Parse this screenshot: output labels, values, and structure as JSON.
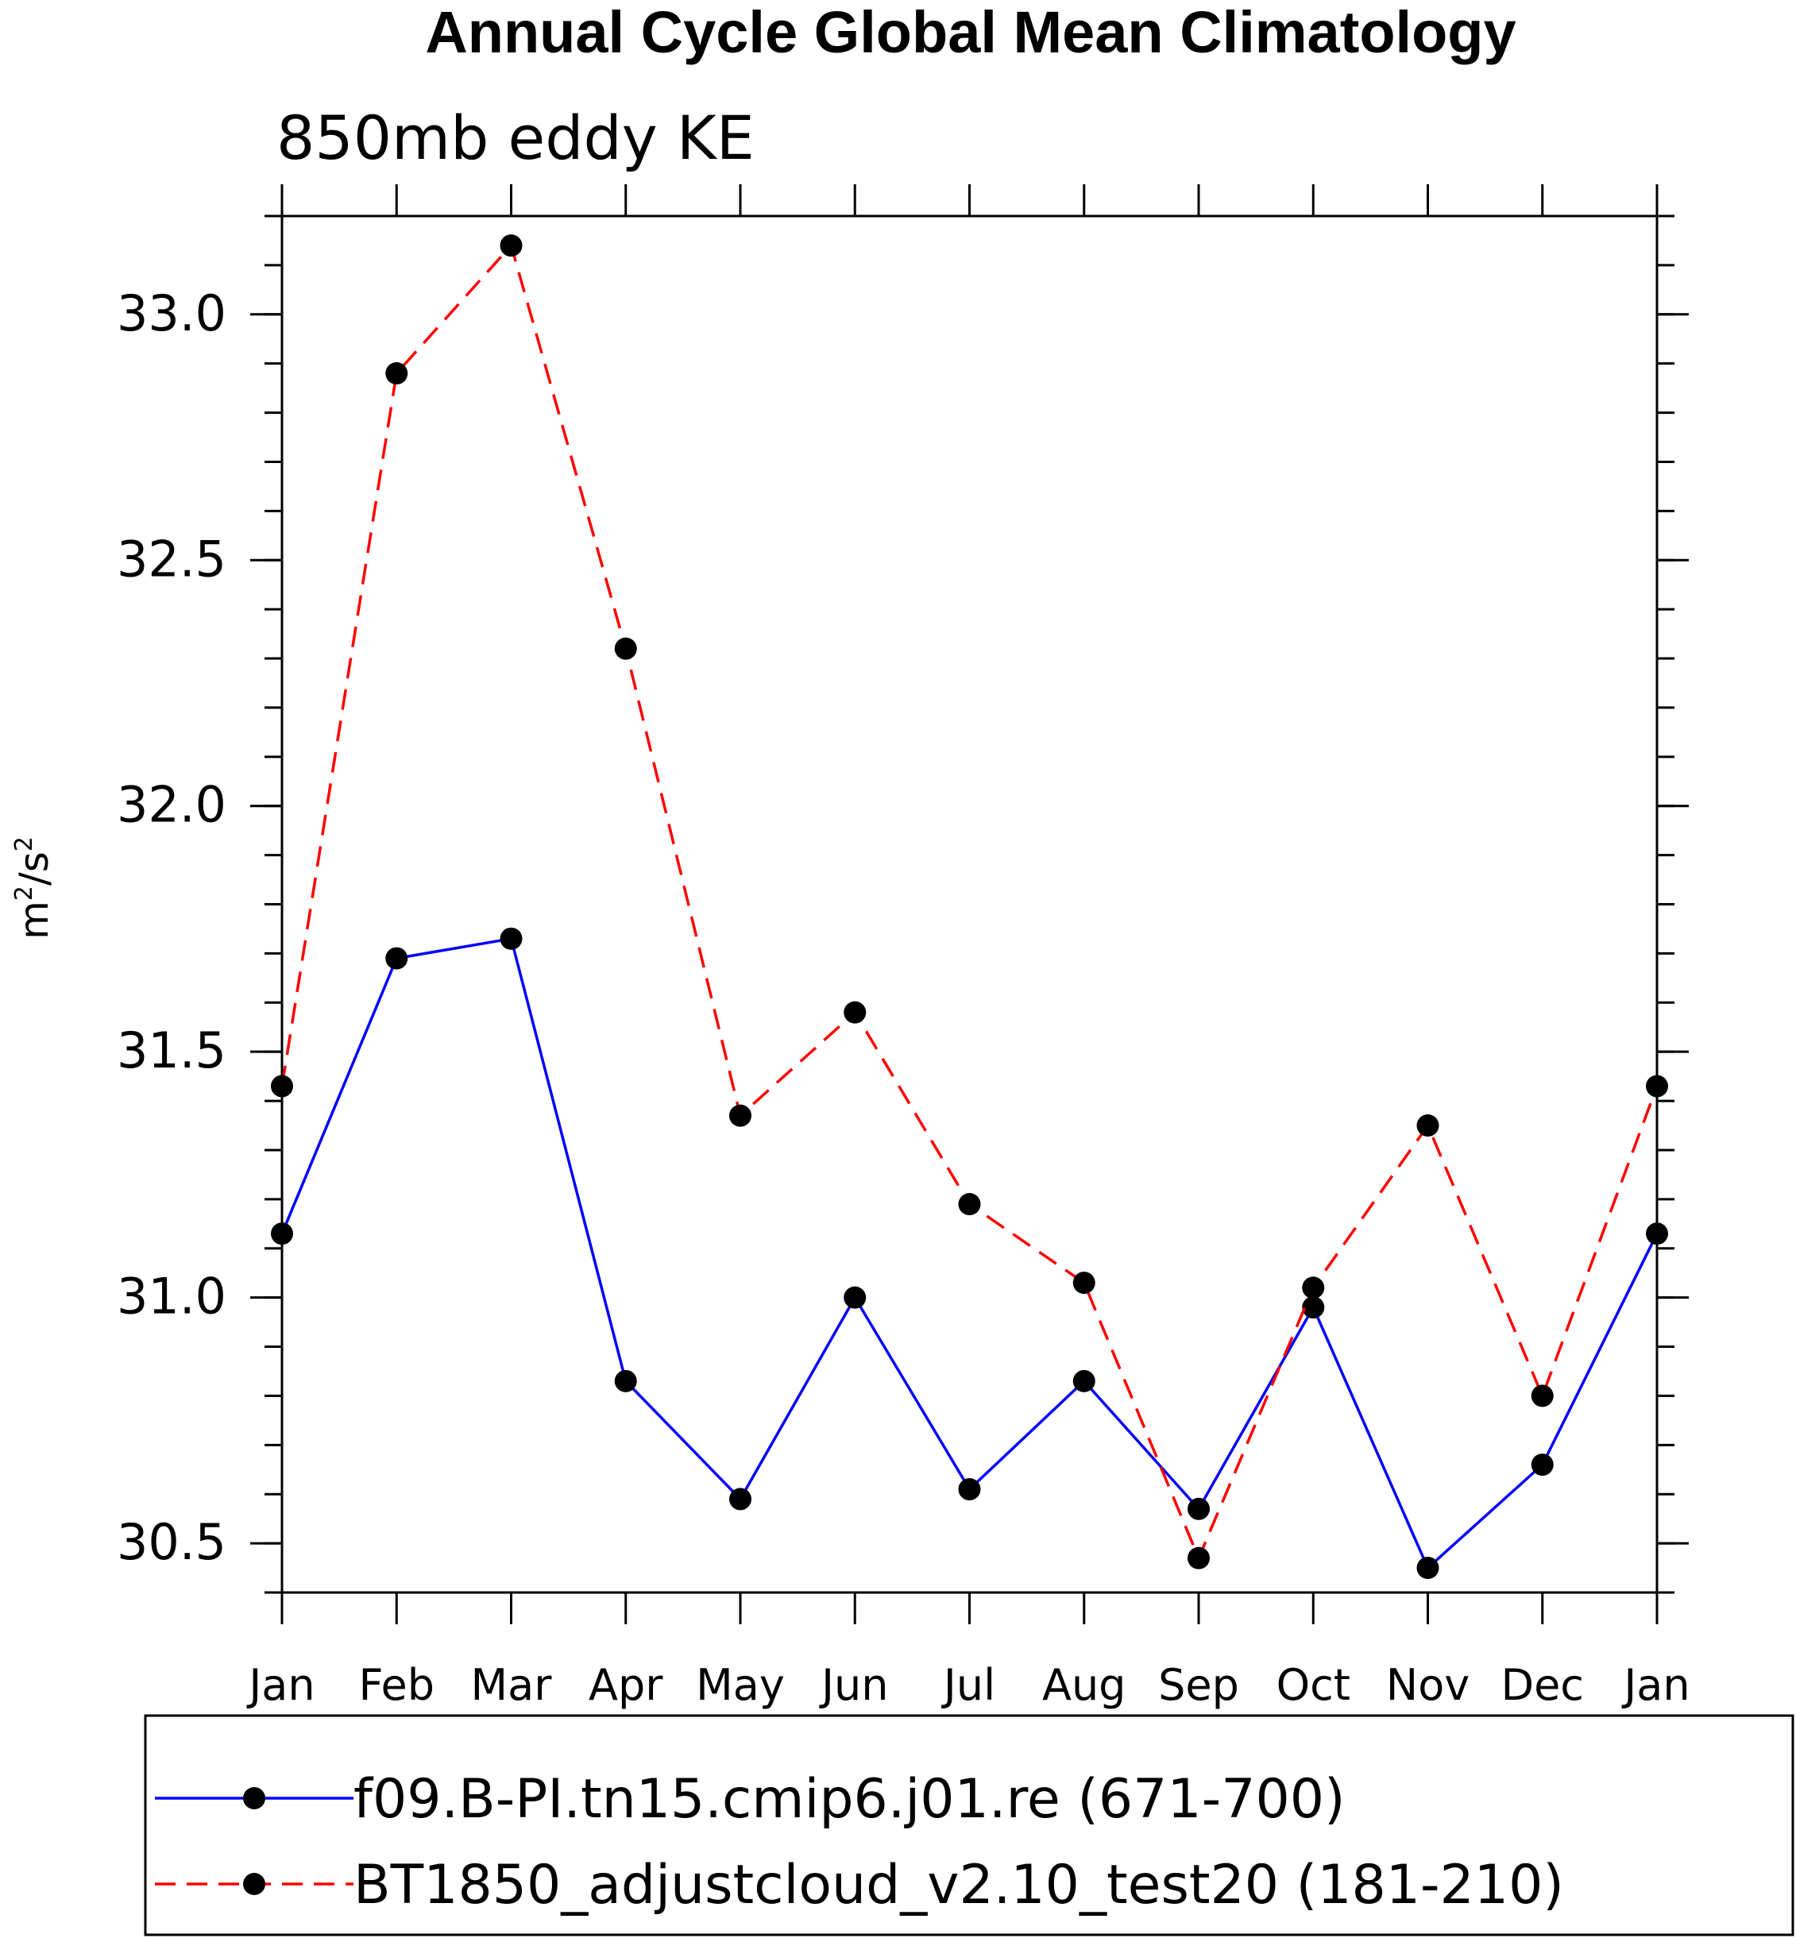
{
  "chart_data": {
    "type": "line",
    "title": "Annual Cycle Global Mean Climatology",
    "subtitle": "850mb eddy KE",
    "xlabel": "",
    "ylabel": {
      "base": "m",
      "exp1": "2",
      "sep": "/s",
      "exp2": "2"
    },
    "categories": [
      "Jan",
      "Feb",
      "Mar",
      "Apr",
      "May",
      "Jun",
      "Jul",
      "Aug",
      "Sep",
      "Oct",
      "Nov",
      "Dec",
      "Jan"
    ],
    "ylim": [
      30.4,
      33.2
    ],
    "yticks": [
      30.5,
      31.0,
      31.5,
      32.0,
      32.5,
      33.0
    ],
    "ytick_labels": [
      "30.5",
      "31.0",
      "31.5",
      "32.0",
      "32.5",
      "33.0"
    ],
    "yminor_step": 0.1,
    "grid": false,
    "legend_position": "bottom",
    "series": [
      {
        "name": "f09.B-PI.tn15.cmip6.j01.re (671-700)",
        "color": "#0000ff",
        "dash": "solid",
        "marker": "filled-circle",
        "values": [
          31.13,
          31.69,
          31.73,
          30.83,
          30.59,
          31.0,
          30.61,
          30.83,
          30.57,
          30.98,
          30.45,
          30.66,
          31.13
        ]
      },
      {
        "name": "BT1850_adjustcloud_v2.10_test20 (181-210)",
        "color": "#ff0000",
        "dash": "dashed",
        "marker": "filled-circle",
        "values": [
          31.43,
          32.88,
          33.14,
          32.32,
          31.37,
          31.58,
          31.19,
          31.03,
          30.47,
          31.02,
          31.35,
          30.8,
          31.43
        ]
      }
    ]
  }
}
